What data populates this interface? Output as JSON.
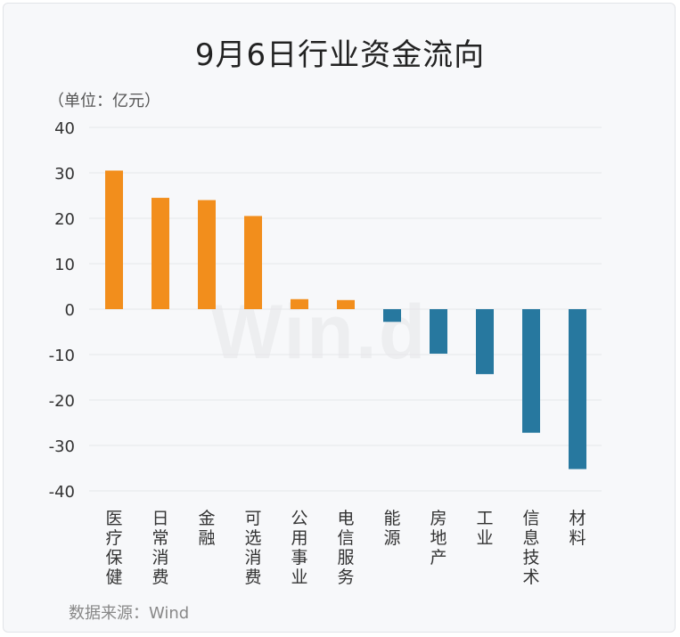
{
  "title": "9月6日行业资金流向",
  "unit_label": "（单位：亿元）",
  "source_label": "数据来源：Wind",
  "watermark": "Win.d",
  "colors": {
    "positive": "#f28e1c",
    "negative": "#27789f",
    "grid": "#e6e7ea",
    "axis_text": "#333333"
  },
  "chart_data": {
    "type": "bar",
    "title": "9月6日行业资金流向",
    "ylabel": "（单位：亿元）",
    "xlabel": "",
    "ylim": [
      -40,
      40
    ],
    "yticks": [
      40,
      30,
      20,
      10,
      0,
      -10,
      -20,
      -30,
      -40
    ],
    "grid": true,
    "categories": [
      "医疗保健",
      "日常消费",
      "金融",
      "可选消费",
      "公用事业",
      "电信服务",
      "能源",
      "房地产",
      "工业",
      "信息技术",
      "材料"
    ],
    "values": [
      30.5,
      24.5,
      24.0,
      20.5,
      2.2,
      2.0,
      -2.8,
      -9.8,
      -14.3,
      -27.2,
      -35.2
    ]
  }
}
